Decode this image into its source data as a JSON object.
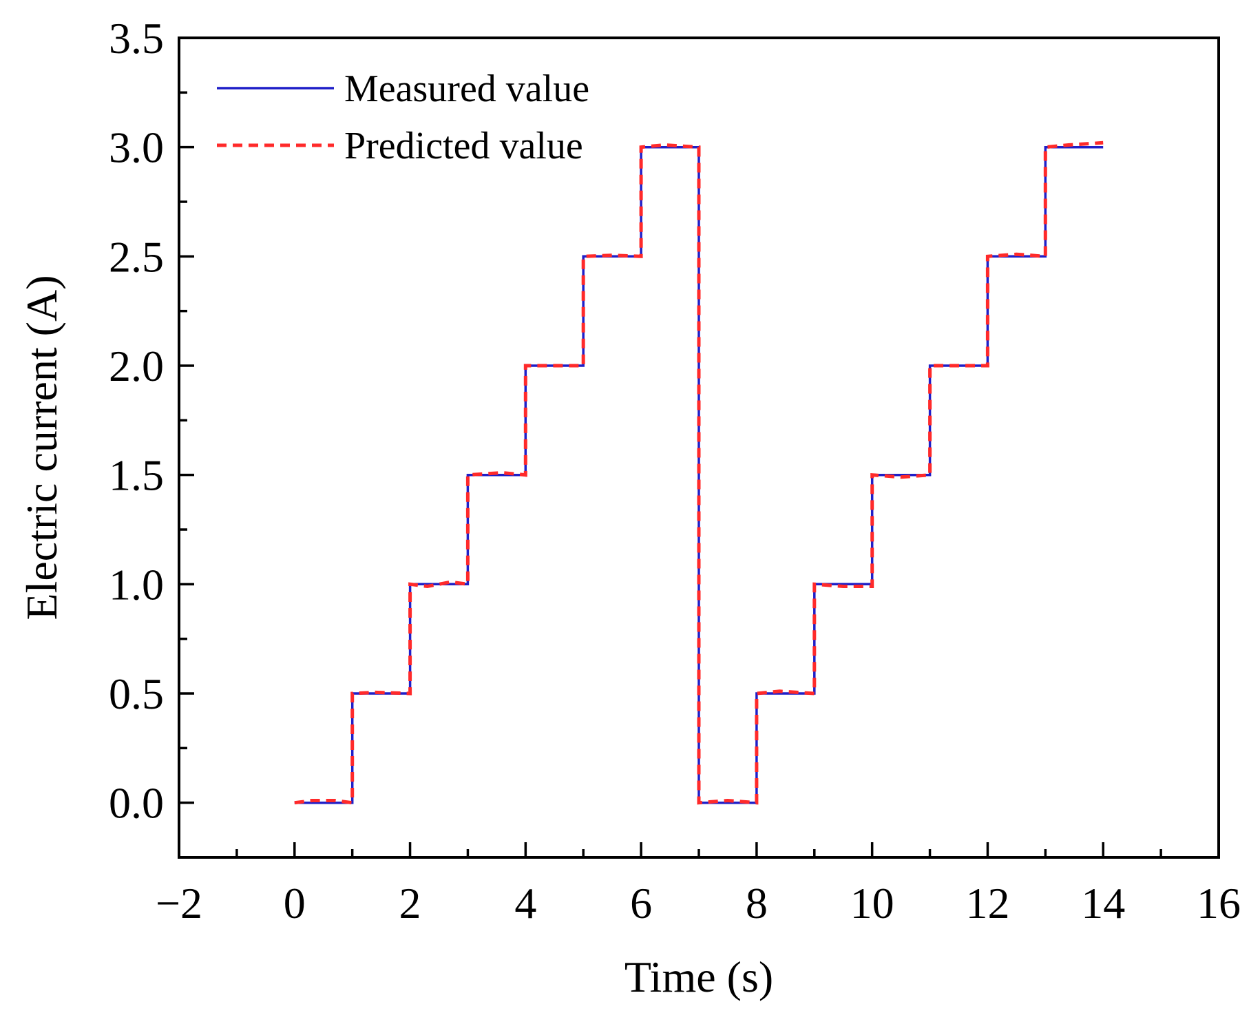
{
  "chart_data": {
    "type": "line",
    "title": "",
    "xlabel": "Time (s)",
    "ylabel": "Electric current (A)",
    "xlim": [
      -2,
      16
    ],
    "ylim": [
      -0.25,
      3.5
    ],
    "x_ticks": [
      -2,
      0,
      2,
      4,
      6,
      8,
      10,
      12,
      14,
      16
    ],
    "x_tick_labels": [
      "−2",
      "0",
      "2",
      "4",
      "6",
      "8",
      "10",
      "12",
      "14",
      "16"
    ],
    "x_minor_ticks": [
      -1,
      1,
      3,
      5,
      7,
      9,
      11,
      13,
      15
    ],
    "y_ticks": [
      0.0,
      0.5,
      1.0,
      1.5,
      2.0,
      2.5,
      3.0,
      3.5
    ],
    "y_tick_labels": [
      "0.0",
      "0.5",
      "1.0",
      "1.5",
      "2.0",
      "2.5",
      "3.0",
      "3.5"
    ],
    "y_minor_ticks": [
      0.25,
      0.75,
      1.25,
      1.75,
      2.25,
      2.75,
      3.25
    ],
    "grid": false,
    "legend_position": "top-left",
    "series": [
      {
        "name": "Measured value",
        "color": "#1f1fc8",
        "style": "solid",
        "x": [
          0,
          1,
          1,
          2,
          2,
          3,
          3,
          4,
          4,
          5,
          5,
          6,
          6,
          7,
          7,
          8,
          8,
          9,
          9,
          10,
          10,
          11,
          11,
          12,
          12,
          13,
          13,
          14
        ],
        "y": [
          0,
          0,
          0.5,
          0.5,
          1.0,
          1.0,
          1.5,
          1.5,
          2.0,
          2.0,
          2.5,
          2.5,
          3.0,
          3.0,
          0,
          0,
          0.5,
          0.5,
          1.0,
          1.0,
          1.5,
          1.5,
          2.0,
          2.0,
          2.5,
          2.5,
          3.0,
          3.0
        ]
      },
      {
        "name": "Predicted value",
        "color": "#ff2a2a",
        "style": "dashed",
        "x": [
          0,
          0.3,
          0.7,
          1,
          1,
          1.4,
          2,
          2,
          2.3,
          2.7,
          3,
          3,
          3.6,
          4,
          4,
          4.5,
          5,
          5,
          5.5,
          6,
          6,
          6.4,
          7,
          7,
          7.5,
          8,
          8,
          8.4,
          9,
          9,
          9.5,
          10,
          10,
          10.5,
          11,
          11,
          11.6,
          12,
          12,
          12.5,
          13,
          13,
          13.4,
          14
        ],
        "y": [
          0,
          0.01,
          0.01,
          0,
          0.5,
          0.505,
          0.5,
          1.0,
          0.99,
          1.01,
          1.0,
          1.5,
          1.51,
          1.5,
          2.0,
          2.0,
          2.0,
          2.5,
          2.505,
          2.5,
          3.0,
          3.01,
          3.0,
          0,
          0.01,
          0,
          0.5,
          0.51,
          0.5,
          1.0,
          0.99,
          0.99,
          1.5,
          1.49,
          1.5,
          2.0,
          2.0,
          2.0,
          2.5,
          2.51,
          2.5,
          3.0,
          3.01,
          3.02
        ]
      }
    ]
  }
}
